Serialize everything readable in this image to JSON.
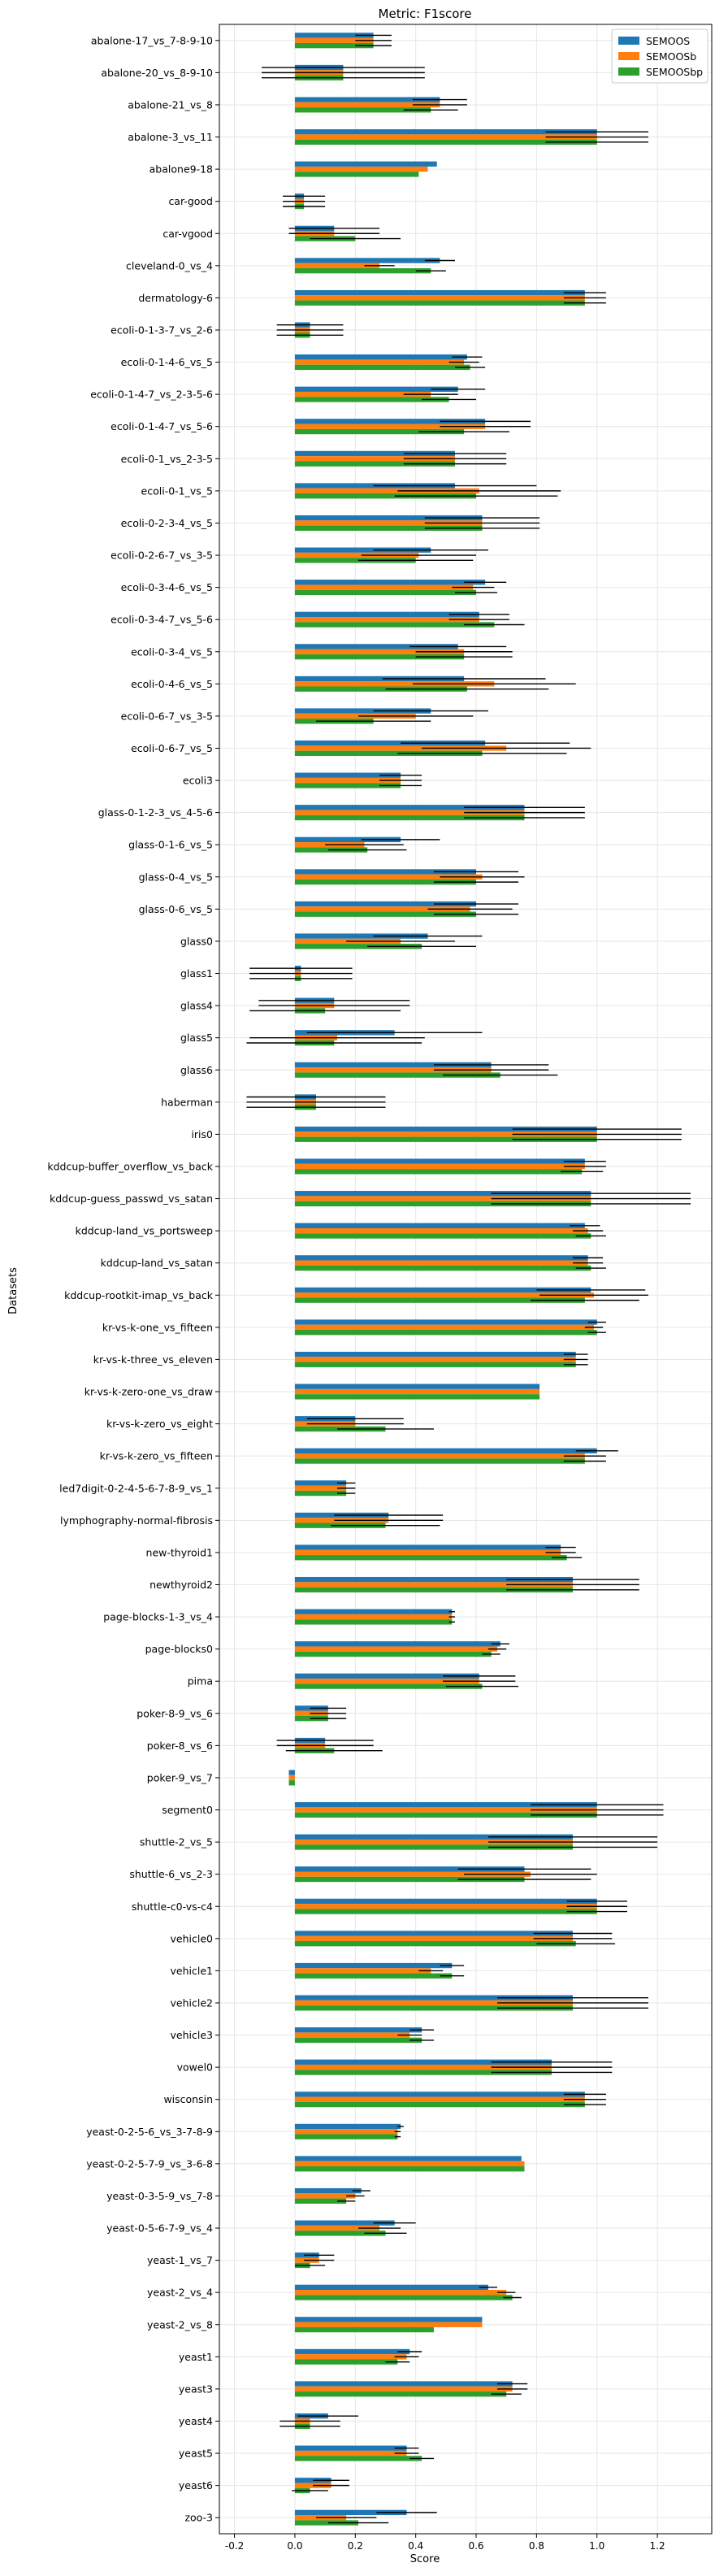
{
  "chart_data": {
    "type": "bar",
    "orientation": "horizontal",
    "title": "Metric: F1score",
    "xlabel": "Score",
    "ylabel": "Datasets",
    "xlim": [
      -0.25,
      1.38
    ],
    "xticks": [
      "-0.2",
      "0.0",
      "0.2",
      "0.4",
      "0.6",
      "0.8",
      "1.0",
      "1.2"
    ],
    "grid": true,
    "legend_position": "top-right",
    "categories": [
      "abalone-17_vs_7-8-9-10",
      "abalone-20_vs_8-9-10",
      "abalone-21_vs_8",
      "abalone-3_vs_11",
      "abalone9-18",
      "car-good",
      "car-vgood",
      "cleveland-0_vs_4",
      "dermatology-6",
      "ecoli-0-1-3-7_vs_2-6",
      "ecoli-0-1-4-6_vs_5",
      "ecoli-0-1-4-7_vs_2-3-5-6",
      "ecoli-0-1-4-7_vs_5-6",
      "ecoli-0-1_vs_2-3-5",
      "ecoli-0-1_vs_5",
      "ecoli-0-2-3-4_vs_5",
      "ecoli-0-2-6-7_vs_3-5",
      "ecoli-0-3-4-6_vs_5",
      "ecoli-0-3-4-7_vs_5-6",
      "ecoli-0-3-4_vs_5",
      "ecoli-0-4-6_vs_5",
      "ecoli-0-6-7_vs_3-5",
      "ecoli-0-6-7_vs_5",
      "ecoli3",
      "glass-0-1-2-3_vs_4-5-6",
      "glass-0-1-6_vs_5",
      "glass-0-4_vs_5",
      "glass-0-6_vs_5",
      "glass0",
      "glass1",
      "glass4",
      "glass5",
      "glass6",
      "haberman",
      "iris0",
      "kddcup-buffer_overflow_vs_back",
      "kddcup-guess_passwd_vs_satan",
      "kddcup-land_vs_portsweep",
      "kddcup-land_vs_satan",
      "kddcup-rootkit-imap_vs_back",
      "kr-vs-k-one_vs_fifteen",
      "kr-vs-k-three_vs_eleven",
      "kr-vs-k-zero-one_vs_draw",
      "kr-vs-k-zero_vs_eight",
      "kr-vs-k-zero_vs_fifteen",
      "led7digit-0-2-4-5-6-7-8-9_vs_1",
      "lymphography-normal-fibrosis",
      "new-thyroid1",
      "newthyroid2",
      "page-blocks-1-3_vs_4",
      "page-blocks0",
      "pima",
      "poker-8-9_vs_6",
      "poker-8_vs_6",
      "poker-9_vs_7",
      "segment0",
      "shuttle-2_vs_5",
      "shuttle-6_vs_2-3",
      "shuttle-c0-vs-c4",
      "vehicle0",
      "vehicle1",
      "vehicle2",
      "vehicle3",
      "vowel0",
      "wisconsin",
      "yeast-0-2-5-6_vs_3-7-8-9",
      "yeast-0-2-5-7-9_vs_3-6-8",
      "yeast-0-3-5-9_vs_7-8",
      "yeast-0-5-6-7-9_vs_4",
      "yeast-1_vs_7",
      "yeast-2_vs_4",
      "yeast-2_vs_8",
      "yeast1",
      "yeast3",
      "yeast4",
      "yeast5",
      "yeast6",
      "zoo-3"
    ],
    "series": [
      {
        "name": "SEMOOS",
        "color": "#1f77b4",
        "values": [
          0.26,
          0.16,
          0.48,
          1.0,
          0.47,
          0.03,
          0.13,
          0.48,
          0.96,
          0.05,
          0.57,
          0.54,
          0.63,
          0.53,
          0.53,
          0.62,
          0.45,
          0.63,
          0.61,
          0.54,
          0.56,
          0.45,
          0.63,
          0.35,
          0.76,
          0.35,
          0.6,
          0.6,
          0.44,
          0.02,
          0.13,
          0.33,
          0.65,
          0.07,
          1.0,
          0.96,
          0.98,
          0.96,
          0.97,
          0.98,
          1.0,
          0.93,
          0.81,
          0.2,
          1.0,
          0.17,
          0.31,
          0.88,
          0.92,
          0.52,
          0.68,
          0.61,
          0.11,
          0.1,
          -0.02,
          1.0,
          0.92,
          0.76,
          1.0,
          0.92,
          0.52,
          0.92,
          0.42,
          0.85,
          0.96,
          0.35,
          0.75,
          0.22,
          0.33,
          0.08,
          0.64,
          0.62,
          0.38,
          0.72,
          0.11,
          0.37,
          0.12,
          0.37
        ],
        "errors": [
          0.06,
          0.27,
          0.09,
          0.17,
          0.0,
          0.07,
          0.15,
          0.05,
          0.07,
          0.11,
          0.05,
          0.09,
          0.15,
          0.17,
          0.27,
          0.19,
          0.19,
          0.07,
          0.1,
          0.16,
          0.27,
          0.19,
          0.28,
          0.07,
          0.2,
          0.13,
          0.14,
          0.14,
          0.18,
          0.17,
          0.25,
          0.29,
          0.19,
          0.23,
          0.28,
          0.07,
          0.33,
          0.05,
          0.05,
          0.18,
          0.03,
          0.04,
          0.0,
          0.16,
          0.07,
          0.03,
          0.18,
          0.05,
          0.22,
          0.01,
          0.03,
          0.12,
          0.06,
          0.16,
          0.0,
          0.22,
          0.28,
          0.22,
          0.1,
          0.13,
          0.04,
          0.25,
          0.04,
          0.2,
          0.07,
          0.01,
          0.0,
          0.03,
          0.07,
          0.05,
          0.03,
          0.0,
          0.04,
          0.05,
          0.1,
          0.04,
          0.06,
          0.1
        ]
      },
      {
        "name": "SEMOOSb",
        "color": "#ff7f0e",
        "values": [
          0.26,
          0.16,
          0.48,
          1.0,
          0.44,
          0.03,
          0.13,
          0.28,
          0.96,
          0.05,
          0.56,
          0.45,
          0.63,
          0.53,
          0.61,
          0.62,
          0.41,
          0.59,
          0.61,
          0.56,
          0.66,
          0.4,
          0.7,
          0.35,
          0.76,
          0.23,
          0.62,
          0.58,
          0.35,
          0.02,
          0.13,
          0.14,
          0.65,
          0.07,
          1.0,
          0.96,
          0.98,
          0.97,
          0.97,
          0.99,
          0.99,
          0.93,
          0.81,
          0.2,
          0.96,
          0.17,
          0.31,
          0.88,
          0.92,
          0.52,
          0.67,
          0.61,
          0.11,
          0.1,
          -0.02,
          1.0,
          0.92,
          0.78,
          1.0,
          0.92,
          0.45,
          0.92,
          0.38,
          0.85,
          0.96,
          0.34,
          0.76,
          0.2,
          0.28,
          0.08,
          0.7,
          0.62,
          0.37,
          0.72,
          0.05,
          0.37,
          0.12,
          0.17
        ],
        "errors": [
          0.06,
          0.27,
          0.09,
          0.17,
          0.0,
          0.07,
          0.15,
          0.05,
          0.07,
          0.11,
          0.05,
          0.09,
          0.15,
          0.17,
          0.27,
          0.19,
          0.19,
          0.07,
          0.1,
          0.16,
          0.27,
          0.19,
          0.28,
          0.07,
          0.2,
          0.13,
          0.14,
          0.14,
          0.18,
          0.17,
          0.25,
          0.29,
          0.19,
          0.23,
          0.28,
          0.07,
          0.33,
          0.05,
          0.05,
          0.18,
          0.03,
          0.04,
          0.0,
          0.16,
          0.07,
          0.03,
          0.18,
          0.05,
          0.22,
          0.01,
          0.03,
          0.12,
          0.06,
          0.16,
          0.0,
          0.22,
          0.28,
          0.22,
          0.1,
          0.13,
          0.04,
          0.25,
          0.04,
          0.2,
          0.07,
          0.01,
          0.0,
          0.03,
          0.07,
          0.05,
          0.03,
          0.0,
          0.04,
          0.05,
          0.1,
          0.04,
          0.06,
          0.1
        ]
      },
      {
        "name": "SEMOOSbp",
        "color": "#2ca02c",
        "values": [
          0.26,
          0.16,
          0.45,
          1.0,
          0.41,
          0.03,
          0.2,
          0.45,
          0.96,
          0.05,
          0.58,
          0.51,
          0.56,
          0.53,
          0.6,
          0.62,
          0.4,
          0.6,
          0.66,
          0.56,
          0.57,
          0.26,
          0.62,
          0.35,
          0.76,
          0.24,
          0.6,
          0.6,
          0.42,
          0.02,
          0.1,
          0.13,
          0.68,
          0.07,
          1.0,
          0.95,
          0.98,
          0.98,
          0.98,
          0.96,
          1.0,
          0.93,
          0.81,
          0.3,
          0.96,
          0.17,
          0.3,
          0.9,
          0.92,
          0.52,
          0.65,
          0.62,
          0.11,
          0.13,
          -0.02,
          1.0,
          0.92,
          0.76,
          1.0,
          0.93,
          0.52,
          0.92,
          0.42,
          0.85,
          0.96,
          0.34,
          0.76,
          0.17,
          0.3,
          0.05,
          0.72,
          0.46,
          0.34,
          0.7,
          0.05,
          0.42,
          0.05,
          0.21
        ],
        "errors": [
          0.06,
          0.27,
          0.09,
          0.17,
          0.0,
          0.07,
          0.15,
          0.05,
          0.07,
          0.11,
          0.05,
          0.09,
          0.15,
          0.17,
          0.27,
          0.19,
          0.19,
          0.07,
          0.1,
          0.16,
          0.27,
          0.19,
          0.28,
          0.07,
          0.2,
          0.13,
          0.14,
          0.14,
          0.18,
          0.17,
          0.25,
          0.29,
          0.19,
          0.23,
          0.28,
          0.07,
          0.33,
          0.05,
          0.05,
          0.18,
          0.03,
          0.04,
          0.0,
          0.16,
          0.07,
          0.03,
          0.18,
          0.05,
          0.22,
          0.01,
          0.03,
          0.12,
          0.06,
          0.16,
          0.0,
          0.22,
          0.28,
          0.22,
          0.1,
          0.13,
          0.04,
          0.25,
          0.04,
          0.2,
          0.07,
          0.01,
          0.0,
          0.03,
          0.07,
          0.05,
          0.03,
          0.0,
          0.04,
          0.05,
          0.1,
          0.04,
          0.06,
          0.1
        ]
      }
    ]
  }
}
